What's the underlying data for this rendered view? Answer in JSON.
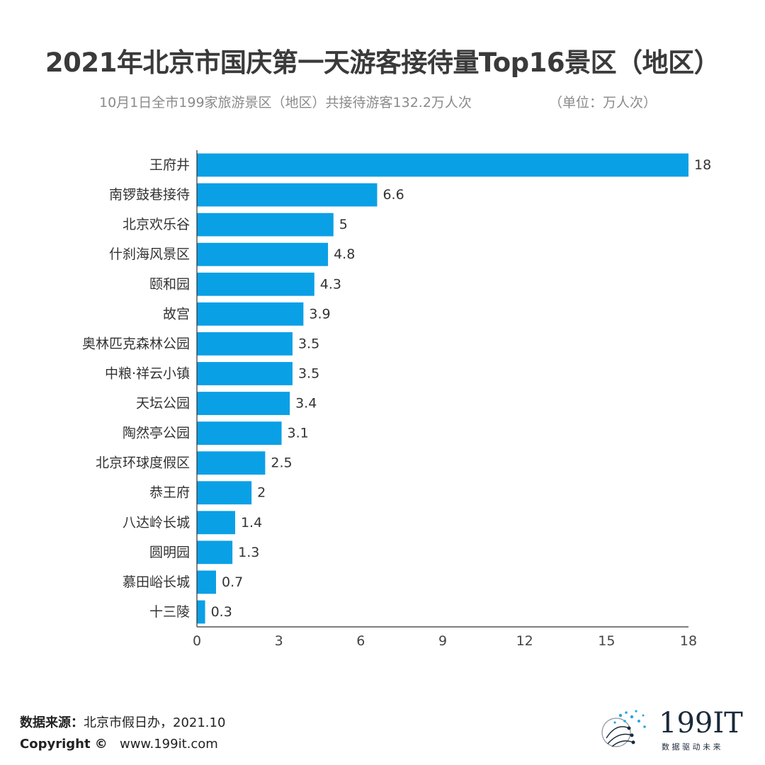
{
  "title": "2021年北京市国庆第一天游客接待量Top16景区（地区）",
  "subtitle": "10月1日全市199家旅游景区（地区）共接待游客132.2万人次",
  "unit": "（单位：万人次）",
  "chart_data": {
    "type": "bar",
    "orientation": "horizontal",
    "categories": [
      "王府井",
      "南锣鼓巷接待",
      "北京欢乐谷",
      "什刹海风景区",
      "颐和园",
      "故宫",
      "奥林匹克森林公园",
      "中粮·祥云小镇",
      "天坛公园",
      "陶然亭公园",
      "北京环球度假区",
      "恭王府",
      "八达岭长城",
      "圆明园",
      "慕田峪长城",
      "十三陵"
    ],
    "values": [
      18,
      6.6,
      5,
      4.8,
      4.3,
      3.9,
      3.5,
      3.5,
      3.4,
      3.1,
      2.5,
      2,
      1.4,
      1.3,
      0.7,
      0.3
    ],
    "xlim": [
      0,
      18
    ],
    "xticks": [
      0,
      3,
      6,
      9,
      12,
      15,
      18
    ],
    "bar_color": "#0aa0e6",
    "grid": false
  },
  "footer": {
    "source_label": "数据来源：",
    "source_value": "北京市假日办，2021.10",
    "copyright_label": "Copyright ©",
    "copyright_value": "www.199it.com"
  },
  "logo": {
    "brand": "199IT",
    "tagline": "数 据 驱 动 未 来",
    "brand_color": "#1a2a3a",
    "accent_color": "#27a6e0"
  }
}
